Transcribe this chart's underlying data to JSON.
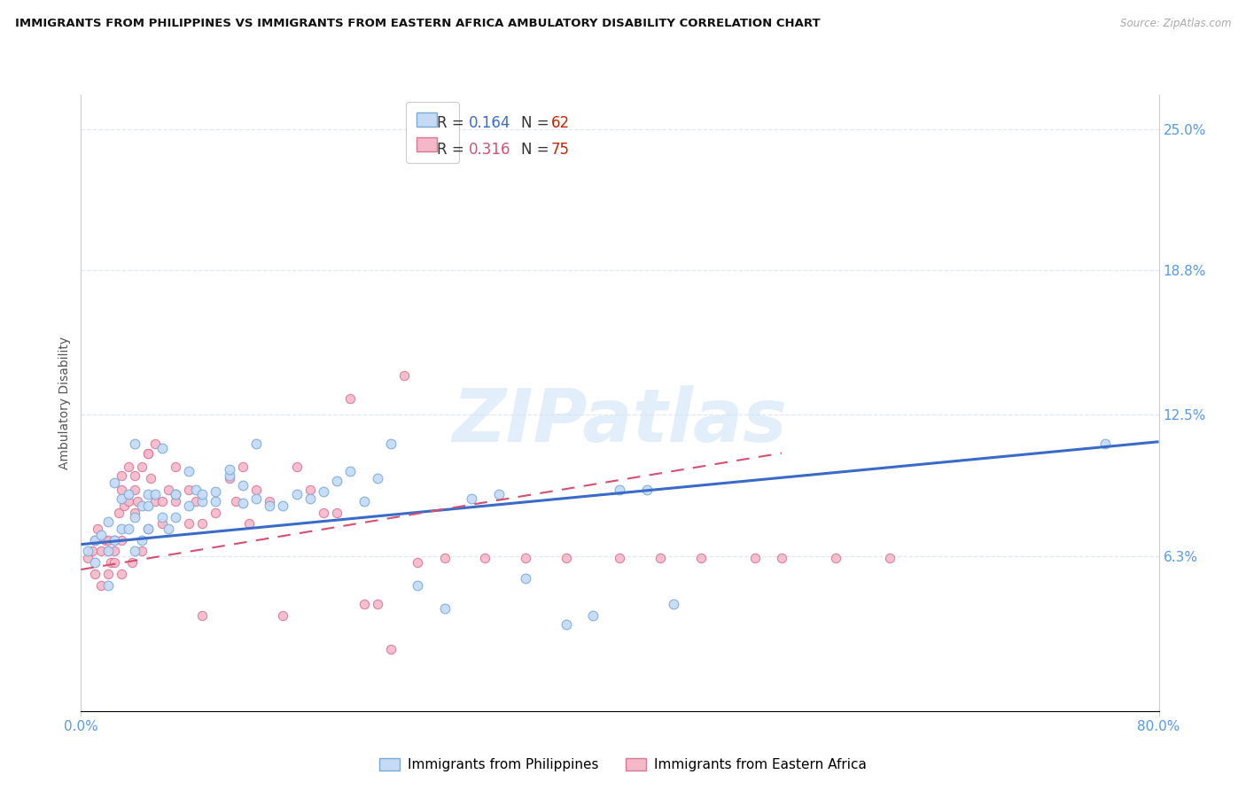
{
  "title": "IMMIGRANTS FROM PHILIPPINES VS IMMIGRANTS FROM EASTERN AFRICA AMBULATORY DISABILITY CORRELATION CHART",
  "source": "Source: ZipAtlas.com",
  "ylabel": "Ambulatory Disability",
  "xlim": [
    0.0,
    0.8
  ],
  "ylim": [
    -0.005,
    0.265
  ],
  "yticks": [
    0.063,
    0.125,
    0.188,
    0.25
  ],
  "ytick_labels": [
    "6.3%",
    "12.5%",
    "18.8%",
    "25.0%"
  ],
  "xtick_positions": [
    0.0,
    0.8
  ],
  "xtick_labels": [
    "0.0%",
    "80.0%"
  ],
  "philippines_fill": "#c5daf5",
  "philippines_edge": "#7aaad8",
  "eastern_africa_fill": "#f5b8c8",
  "eastern_africa_edge": "#d87898",
  "trend_blue": "#3a6bc9",
  "trend_pink": "#d45070",
  "axis_color": "#5599ee",
  "grid_color": "#e0e8f0",
  "watermark": "ZIPatlas",
  "label_philippines": "Immigrants from Philippines",
  "label_eastern_africa": "Immigrants from Eastern Africa",
  "phil_trend_x0": 0.0,
  "phil_trend_x1": 0.8,
  "phil_trend_y0": 0.068,
  "phil_trend_y1": 0.113,
  "ea_trend_x0": 0.0,
  "ea_trend_x1": 0.52,
  "ea_trend_y0": 0.057,
  "ea_trend_y1": 0.108,
  "philippines_x": [
    0.005,
    0.01,
    0.01,
    0.015,
    0.02,
    0.02,
    0.02,
    0.025,
    0.025,
    0.03,
    0.03,
    0.035,
    0.035,
    0.04,
    0.04,
    0.04,
    0.045,
    0.045,
    0.05,
    0.05,
    0.05,
    0.055,
    0.06,
    0.06,
    0.065,
    0.07,
    0.07,
    0.07,
    0.08,
    0.08,
    0.085,
    0.09,
    0.09,
    0.1,
    0.1,
    0.11,
    0.11,
    0.12,
    0.12,
    0.13,
    0.13,
    0.14,
    0.15,
    0.16,
    0.17,
    0.18,
    0.19,
    0.2,
    0.21,
    0.22,
    0.23,
    0.25,
    0.27,
    0.29,
    0.31,
    0.33,
    0.36,
    0.38,
    0.4,
    0.42,
    0.44,
    0.76
  ],
  "philippines_y": [
    0.065,
    0.06,
    0.07,
    0.072,
    0.05,
    0.078,
    0.065,
    0.07,
    0.095,
    0.075,
    0.088,
    0.09,
    0.075,
    0.065,
    0.112,
    0.08,
    0.085,
    0.07,
    0.075,
    0.09,
    0.085,
    0.09,
    0.08,
    0.11,
    0.075,
    0.09,
    0.08,
    0.09,
    0.085,
    0.1,
    0.092,
    0.087,
    0.09,
    0.087,
    0.091,
    0.098,
    0.101,
    0.086,
    0.094,
    0.112,
    0.088,
    0.085,
    0.085,
    0.09,
    0.088,
    0.091,
    0.096,
    0.1,
    0.087,
    0.097,
    0.112,
    0.05,
    0.04,
    0.088,
    0.09,
    0.053,
    0.033,
    0.037,
    0.092,
    0.092,
    0.042,
    0.112
  ],
  "eastern_africa_x": [
    0.005,
    0.008,
    0.01,
    0.01,
    0.012,
    0.015,
    0.015,
    0.018,
    0.02,
    0.02,
    0.02,
    0.022,
    0.025,
    0.025,
    0.025,
    0.028,
    0.03,
    0.03,
    0.03,
    0.03,
    0.032,
    0.035,
    0.035,
    0.038,
    0.04,
    0.04,
    0.04,
    0.042,
    0.045,
    0.045,
    0.05,
    0.05,
    0.05,
    0.052,
    0.055,
    0.055,
    0.06,
    0.06,
    0.065,
    0.07,
    0.07,
    0.08,
    0.08,
    0.085,
    0.09,
    0.09,
    0.1,
    0.11,
    0.115,
    0.12,
    0.125,
    0.13,
    0.14,
    0.15,
    0.16,
    0.17,
    0.18,
    0.19,
    0.2,
    0.21,
    0.22,
    0.23,
    0.24,
    0.25,
    0.27,
    0.3,
    0.33,
    0.36,
    0.4,
    0.43,
    0.46,
    0.5,
    0.52,
    0.56,
    0.6
  ],
  "eastern_africa_y": [
    0.062,
    0.065,
    0.055,
    0.07,
    0.075,
    0.065,
    0.05,
    0.07,
    0.07,
    0.065,
    0.055,
    0.06,
    0.065,
    0.07,
    0.06,
    0.082,
    0.092,
    0.098,
    0.055,
    0.07,
    0.085,
    0.087,
    0.102,
    0.06,
    0.082,
    0.092,
    0.098,
    0.087,
    0.102,
    0.065,
    0.075,
    0.108,
    0.108,
    0.097,
    0.087,
    0.112,
    0.087,
    0.077,
    0.092,
    0.087,
    0.102,
    0.077,
    0.092,
    0.087,
    0.077,
    0.037,
    0.082,
    0.097,
    0.087,
    0.102,
    0.077,
    0.092,
    0.087,
    0.037,
    0.102,
    0.092,
    0.082,
    0.082,
    0.132,
    0.042,
    0.042,
    0.022,
    0.142,
    0.06,
    0.062,
    0.062,
    0.062,
    0.062,
    0.062,
    0.062,
    0.062,
    0.062,
    0.062,
    0.062,
    0.062
  ]
}
